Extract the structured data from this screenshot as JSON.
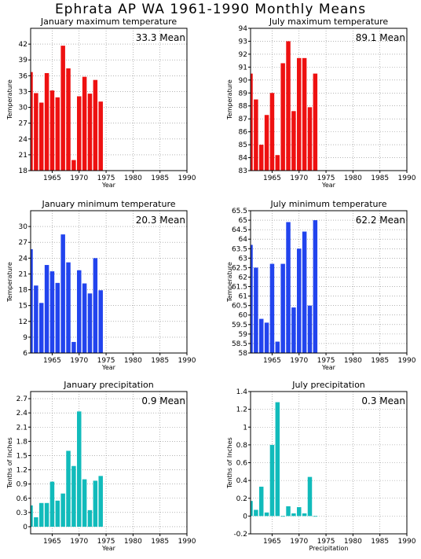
{
  "page_title": "Ephrata AP WA  1961-1990 Monthly Means",
  "chart_data": [
    {
      "type": "bar",
      "title": "January maximum temperature",
      "xlabel": "Year",
      "ylabel": "Temperature",
      "mean_label": "33.3 Mean",
      "color": "#ee1111",
      "xlim": [
        1961,
        1990
      ],
      "ylim": [
        18,
        45
      ],
      "yticks": [
        18,
        21,
        24,
        27,
        30,
        33,
        36,
        39,
        42
      ],
      "xticks": [
        1965,
        1970,
        1975,
        1980,
        1985,
        1990
      ],
      "x": [
        1961,
        1962,
        1963,
        1964,
        1965,
        1966,
        1967,
        1968,
        1969,
        1970,
        1971,
        1972,
        1973,
        1974
      ],
      "values": [
        36.7,
        32.7,
        30.9,
        36.5,
        33.2,
        31.9,
        41.7,
        37.4,
        20.0,
        32.1,
        35.8,
        32.6,
        35.2,
        31.1
      ]
    },
    {
      "type": "bar",
      "title": "July maximum temperature",
      "xlabel": "Year",
      "ylabel": "Temperature",
      "mean_label": "89.1 Mean",
      "color": "#ee1111",
      "xlim": [
        1961,
        1990
      ],
      "ylim": [
        83,
        94
      ],
      "yticks": [
        83,
        84,
        85,
        86,
        87,
        88,
        89,
        90,
        91,
        92,
        93,
        94
      ],
      "xticks": [
        1965,
        1970,
        1975,
        1980,
        1985,
        1990
      ],
      "x": [
        1961,
        1962,
        1963,
        1964,
        1965,
        1966,
        1967,
        1968,
        1969,
        1970,
        1971,
        1972,
        1973
      ],
      "values": [
        90.5,
        88.5,
        85.0,
        87.3,
        89.0,
        84.2,
        91.3,
        93.0,
        87.6,
        91.7,
        91.7,
        87.9,
        90.5
      ]
    },
    {
      "type": "bar",
      "title": "January minimum temperature",
      "xlabel": "Year",
      "ylabel": "Temperature",
      "mean_label": "20.3 Mean",
      "color": "#2244ee",
      "xlim": [
        1961,
        1990
      ],
      "ylim": [
        6,
        33
      ],
      "yticks": [
        6,
        9,
        12,
        15,
        18,
        21,
        24,
        27,
        30
      ],
      "xticks": [
        1965,
        1970,
        1975,
        1980,
        1985,
        1990
      ],
      "x": [
        1961,
        1962,
        1963,
        1964,
        1965,
        1966,
        1967,
        1968,
        1969,
        1970,
        1971,
        1972,
        1973,
        1974
      ],
      "values": [
        25.7,
        18.8,
        15.5,
        22.7,
        21.5,
        19.3,
        28.5,
        23.2,
        8.1,
        21.7,
        19.2,
        17.3,
        24.0,
        17.9
      ]
    },
    {
      "type": "bar",
      "title": "July minimum temperature",
      "xlabel": "Year",
      "ylabel": "Temperature",
      "mean_label": "62.2 Mean",
      "color": "#2244ee",
      "xlim": [
        1961,
        1990
      ],
      "ylim": [
        58,
        65.5
      ],
      "yticks": [
        58,
        58.5,
        59,
        59.5,
        60,
        60.5,
        61,
        61.5,
        62,
        62.5,
        63,
        63.5,
        64,
        64.5,
        65,
        65.5
      ],
      "xticks": [
        1965,
        1970,
        1975,
        1980,
        1985,
        1990
      ],
      "x": [
        1961,
        1962,
        1963,
        1964,
        1965,
        1966,
        1967,
        1968,
        1969,
        1970,
        1971,
        1972,
        1973
      ],
      "values": [
        63.7,
        62.5,
        59.8,
        59.6,
        62.7,
        58.6,
        62.7,
        64.9,
        60.4,
        63.5,
        64.4,
        60.5,
        65.0
      ]
    },
    {
      "type": "bar",
      "title": "January precipitation",
      "xlabel": "Year",
      "ylabel": "Tenths of Inches",
      "mean_label": "0.9  Mean",
      "color": "#11bbbb",
      "xlim": [
        1961,
        1990
      ],
      "ylim": [
        -0.15,
        2.85
      ],
      "yticks": [
        0,
        0.3,
        0.6,
        0.9,
        1.2,
        1.5,
        1.8,
        2.1,
        2.4,
        2.7
      ],
      "xticks": [
        1965,
        1970,
        1975,
        1980,
        1985,
        1990
      ],
      "x": [
        1961,
        1962,
        1963,
        1964,
        1965,
        1966,
        1967,
        1968,
        1969,
        1970,
        1971,
        1972,
        1973,
        1974
      ],
      "values": [
        0.45,
        0.2,
        0.5,
        0.5,
        0.95,
        0.55,
        0.7,
        1.6,
        1.28,
        2.43,
        1.0,
        0.35,
        0.97,
        1.07
      ]
    },
    {
      "type": "bar",
      "title": "July precipitation",
      "xlabel": "Precipitation",
      "ylabel": "Tenths of Inches",
      "mean_label": "0.3  Mean",
      "color": "#11bbbb",
      "xlim": [
        1961,
        1990
      ],
      "ylim": [
        -0.2,
        1.4
      ],
      "yticks": [
        -0.2,
        0,
        0.2,
        0.4,
        0.6,
        0.8,
        1,
        1.2,
        1.4
      ],
      "xticks": [
        1965,
        1970,
        1975,
        1980,
        1985,
        1990
      ],
      "x": [
        1961,
        1962,
        1963,
        1964,
        1965,
        1966,
        1967,
        1968,
        1969,
        1970,
        1971,
        1972,
        1973
      ],
      "values": [
        0.17,
        0.07,
        0.33,
        0.04,
        0.8,
        1.28,
        0.0,
        0.11,
        0.03,
        0.1,
        0.03,
        0.44,
        0.0
      ]
    }
  ]
}
